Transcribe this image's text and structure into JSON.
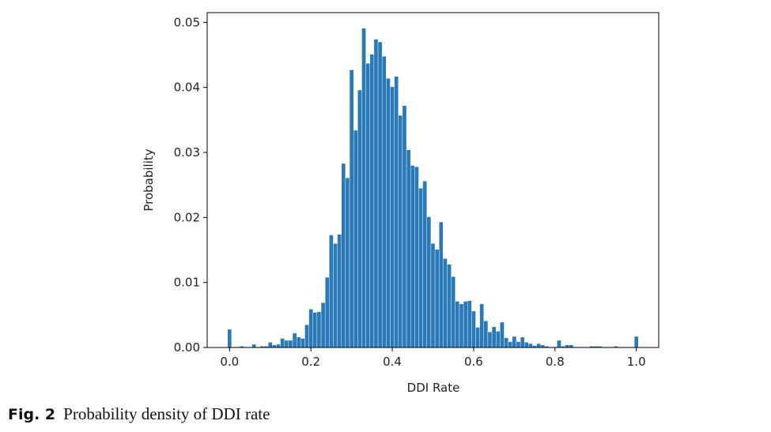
{
  "colors": {
    "bar": "#2a7ab8",
    "axis": "#000000",
    "text": "#222222"
  },
  "chart_data": {
    "type": "bar",
    "title": "",
    "xlabel": "DDI Rate",
    "ylabel": "Probability",
    "xlim": [
      -0.055,
      1.055
    ],
    "ylim": [
      0.0,
      0.0515
    ],
    "bin_width": 0.01,
    "x_ticks": [
      {
        "value": 0.0,
        "label": "0.0"
      },
      {
        "value": 0.2,
        "label": "0.2"
      },
      {
        "value": 0.4,
        "label": "0.4"
      },
      {
        "value": 0.6,
        "label": "0.6"
      },
      {
        "value": 0.8,
        "label": "0.8"
      },
      {
        "value": 1.0,
        "label": "1.0"
      }
    ],
    "y_ticks": [
      {
        "value": 0.0,
        "label": "0.00"
      },
      {
        "value": 0.01,
        "label": "0.01"
      },
      {
        "value": 0.02,
        "label": "0.02"
      },
      {
        "value": 0.03,
        "label": "0.03"
      },
      {
        "value": 0.04,
        "label": "0.04"
      },
      {
        "value": 0.05,
        "label": "0.05"
      }
    ],
    "bins": [
      0.0,
      0.01,
      0.02,
      0.03,
      0.04,
      0.05,
      0.06,
      0.07,
      0.08,
      0.09,
      0.1,
      0.11,
      0.12,
      0.13,
      0.14,
      0.15,
      0.16,
      0.17,
      0.18,
      0.19,
      0.2,
      0.21,
      0.22,
      0.23,
      0.24,
      0.25,
      0.26,
      0.27,
      0.28,
      0.29,
      0.3,
      0.31,
      0.32,
      0.33,
      0.34,
      0.35,
      0.36,
      0.37,
      0.38,
      0.39,
      0.4,
      0.41,
      0.42,
      0.43,
      0.44,
      0.45,
      0.46,
      0.47,
      0.48,
      0.49,
      0.5,
      0.51,
      0.52,
      0.53,
      0.54,
      0.55,
      0.56,
      0.57,
      0.58,
      0.59,
      0.6,
      0.61,
      0.62,
      0.63,
      0.64,
      0.65,
      0.66,
      0.67,
      0.68,
      0.69,
      0.7,
      0.71,
      0.72,
      0.73,
      0.74,
      0.75,
      0.76,
      0.77,
      0.78,
      0.79,
      0.8,
      0.81,
      0.82,
      0.83,
      0.84,
      0.85,
      0.86,
      0.87,
      0.88,
      0.89,
      0.9,
      0.91,
      0.92,
      0.93,
      0.94,
      0.95,
      0.96,
      0.97,
      0.98,
      0.99,
      1.0
    ],
    "values": [
      0.0028,
      0.0001,
      0.0001,
      0.0002,
      0.0001,
      0.0001,
      0.0005,
      0.0001,
      0.0002,
      0.0002,
      0.0008,
      0.0004,
      0.0005,
      0.0014,
      0.0011,
      0.0011,
      0.0022,
      0.0016,
      0.0014,
      0.0035,
      0.0059,
      0.0054,
      0.0055,
      0.0069,
      0.0108,
      0.0173,
      0.016,
      0.0174,
      0.0283,
      0.0261,
      0.0427,
      0.0334,
      0.0396,
      0.0491,
      0.0437,
      0.0451,
      0.0474,
      0.047,
      0.0448,
      0.0414,
      0.0401,
      0.0417,
      0.0357,
      0.0372,
      0.0304,
      0.028,
      0.0278,
      0.0245,
      0.0256,
      0.0201,
      0.016,
      0.0151,
      0.0193,
      0.0137,
      0.0128,
      0.0109,
      0.0071,
      0.0067,
      0.0071,
      0.0072,
      0.0056,
      0.0031,
      0.0067,
      0.0041,
      0.0024,
      0.0032,
      0.0025,
      0.0039,
      0.0015,
      0.0009,
      0.0017,
      0.0009,
      0.0016,
      0.0008,
      0.0006,
      0.0003,
      0.0006,
      0.0004,
      0.0002,
      0.0001,
      0.0001,
      0.0011,
      0.0002,
      0.0004,
      0.0004,
      0.0001,
      0.0001,
      0.0001,
      0.0001,
      0.0002,
      0.0002,
      0.0002,
      0.0001,
      0.0001,
      0.0001,
      0.0002,
      0.0001,
      0.0001,
      0.0001,
      0.0001,
      0.0017
    ]
  },
  "caption": {
    "figure_number": "Fig. 2",
    "text": "Probability density of DDI rate"
  }
}
